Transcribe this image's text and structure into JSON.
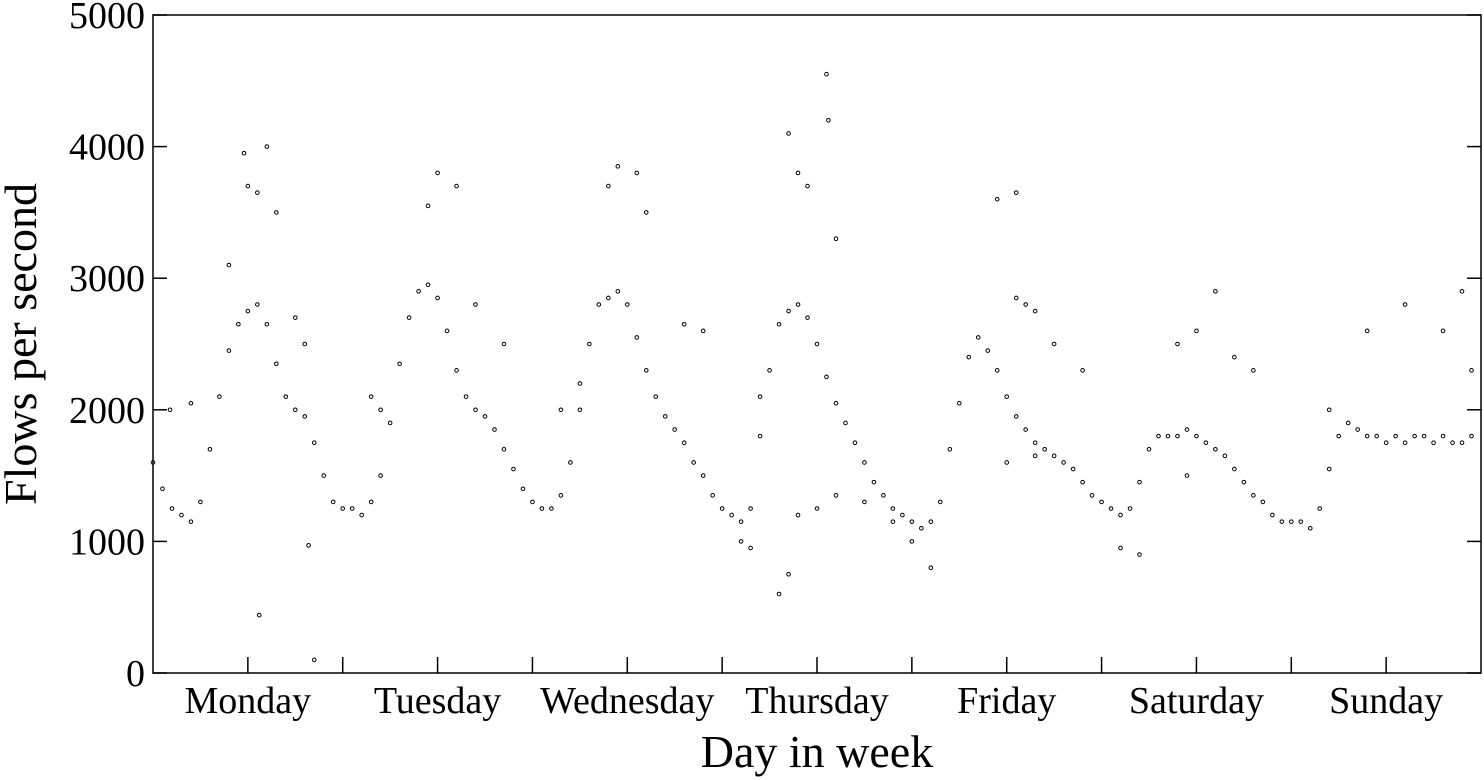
{
  "chart_data": {
    "type": "scatter",
    "xlabel": "Day in week",
    "ylabel": "Flows per second",
    "xlim": [
      0,
      7
    ],
    "ylim": [
      0,
      5000
    ],
    "xticks": [
      {
        "value": 0.5,
        "label": "Monday"
      },
      {
        "value": 1.5,
        "label": "Tuesday"
      },
      {
        "value": 2.5,
        "label": "Wednesday"
      },
      {
        "value": 3.5,
        "label": "Thursday"
      },
      {
        "value": 4.5,
        "label": "Friday"
      },
      {
        "value": 5.5,
        "label": "Saturday"
      },
      {
        "value": 6.5,
        "label": "Sunday"
      }
    ],
    "xminorticks": [
      1,
      2,
      3,
      4,
      5,
      6
    ],
    "yticks": [
      0,
      1000,
      2000,
      3000,
      4000,
      5000
    ],
    "color": "#000000",
    "x": [
      0,
      0.05,
      0.1,
      0.15,
      0.2,
      0.25,
      0.3,
      0.35,
      0.4,
      0.45,
      0.5,
      0.55,
      0.6,
      0.65,
      0.7,
      0.75,
      0.8,
      0.85,
      0.9,
      0.95,
      1,
      1.05,
      1.1,
      1.15,
      1.2,
      1.25,
      1.3,
      1.35,
      1.4,
      1.45,
      1.5,
      1.55,
      1.6,
      1.65,
      1.7,
      1.75,
      1.8,
      1.85,
      1.9,
      1.95,
      2,
      2.05,
      2.1,
      2.15,
      2.2,
      2.25,
      2.3,
      2.35,
      2.4,
      2.45,
      2.5,
      2.55,
      2.6,
      2.65,
      2.7,
      2.75,
      2.8,
      2.85,
      2.9,
      2.95,
      3,
      3.05,
      3.1,
      3.15,
      3.2,
      3.25,
      3.3,
      3.35,
      3.4,
      3.45,
      3.5,
      3.55,
      3.6,
      3.65,
      3.7,
      3.75,
      3.8,
      3.85,
      3.9,
      3.95,
      4,
      4.05,
      4.1,
      4.15,
      4.2,
      4.25,
      4.3,
      4.35,
      4.4,
      4.45,
      4.5,
      4.55,
      4.6,
      4.65,
      4.7,
      4.75,
      4.8,
      4.85,
      4.9,
      4.95,
      5,
      5.05,
      5.1,
      5.15,
      5.2,
      5.25,
      5.3,
      5.35,
      5.4,
      5.45,
      5.5,
      5.55,
      5.6,
      5.65,
      5.7,
      5.75,
      5.8,
      5.85,
      5.9,
      5.95,
      6,
      6.05,
      6.1,
      6.15,
      6.2,
      6.25,
      6.3,
      6.35,
      6.4,
      6.45,
      6.5,
      6.55,
      6.6,
      6.65,
      6.7,
      6.75,
      6.8,
      6.85,
      6.9,
      6.95,
      0.48,
      0.6,
      0.55,
      0.65,
      0.5,
      0.4,
      0.75,
      0.8,
      0.2,
      0.09,
      0.82,
      0.85,
      0.56,
      1.5,
      1.6,
      1.45,
      1.7,
      1.85,
      1.2,
      1.15,
      2.45,
      2.55,
      2.4,
      2.6,
      2.8,
      2.9,
      2.25,
      2.15,
      3.4,
      3.45,
      3.35,
      3.55,
      3.56,
      3.6,
      3.1,
      3.15,
      3.3,
      3.35,
      3.4,
      3.5,
      3.6,
      3.75,
      3.9,
      3.2,
      4,
      4.1,
      4.45,
      4.55,
      4.6,
      4.65,
      4.55,
      4.5,
      4.65,
      4.75,
      4.9,
      5.1,
      5.2,
      5.4,
      5.5,
      5.6,
      5.7,
      5.8,
      5.45,
      6.2,
      6.4,
      6.6,
      6.8,
      6.9,
      6.95
    ],
    "values": [
      1600,
      1400,
      1250,
      1200,
      1150,
      1300,
      1700,
      2100,
      2450,
      2650,
      2750,
      2800,
      2650,
      2350,
      2100,
      2000,
      1950,
      1750,
      1500,
      1300,
      1250,
      1250,
      1200,
      1300,
      1500,
      1900,
      2350,
      2700,
      2900,
      2950,
      2850,
      2600,
      2300,
      2100,
      2000,
      1950,
      1850,
      1700,
      1550,
      1400,
      1300,
      1250,
      1250,
      1350,
      1600,
      2000,
      2500,
      2800,
      2850,
      2900,
      2800,
      2550,
      2300,
      2100,
      1950,
      1850,
      1750,
      1600,
      1500,
      1350,
      1250,
      1200,
      1150,
      1250,
      1800,
      2300,
      2650,
      2750,
      2800,
      2700,
      2500,
      2250,
      2050,
      1900,
      1750,
      1600,
      1450,
      1350,
      1250,
      1200,
      1150,
      1100,
      1150,
      1300,
      1700,
      2050,
      2400,
      2550,
      2450,
      2300,
      2100,
      1950,
      1850,
      1750,
      1700,
      1650,
      1600,
      1550,
      1450,
      1350,
      1300,
      1250,
      1200,
      1250,
      1450,
      1700,
      1800,
      1800,
      1800,
      1850,
      1800,
      1750,
      1700,
      1650,
      1550,
      1450,
      1350,
      1300,
      1200,
      1150,
      1150,
      1150,
      1100,
      1250,
      1550,
      1800,
      1900,
      1850,
      1800,
      1800,
      1750,
      1800,
      1750,
      1800,
      1800,
      1750,
      1800,
      1750,
      1750,
      1800,
      3950,
      4000,
      3650,
      3500,
      3700,
      3100,
      2700,
      2500,
      2050,
      2000,
      970,
      100,
      440,
      3800,
      3700,
      3550,
      2800,
      2500,
      2000,
      2100,
      3850,
      3800,
      3700,
      3500,
      2650,
      2600,
      2200,
      2000,
      3800,
      3700,
      4100,
      4550,
      4200,
      3300,
      1000,
      950,
      600,
      750,
      1200,
      1250,
      1350,
      1300,
      1150,
      2100,
      1000,
      800,
      3600,
      3650,
      2800,
      2750,
      2850,
      1600,
      1650,
      2500,
      2300,
      950,
      900,
      2500,
      2600,
      2900,
      2400,
      2300,
      1500,
      2000,
      2600,
      2800,
      2600,
      2900,
      2300
    ]
  }
}
